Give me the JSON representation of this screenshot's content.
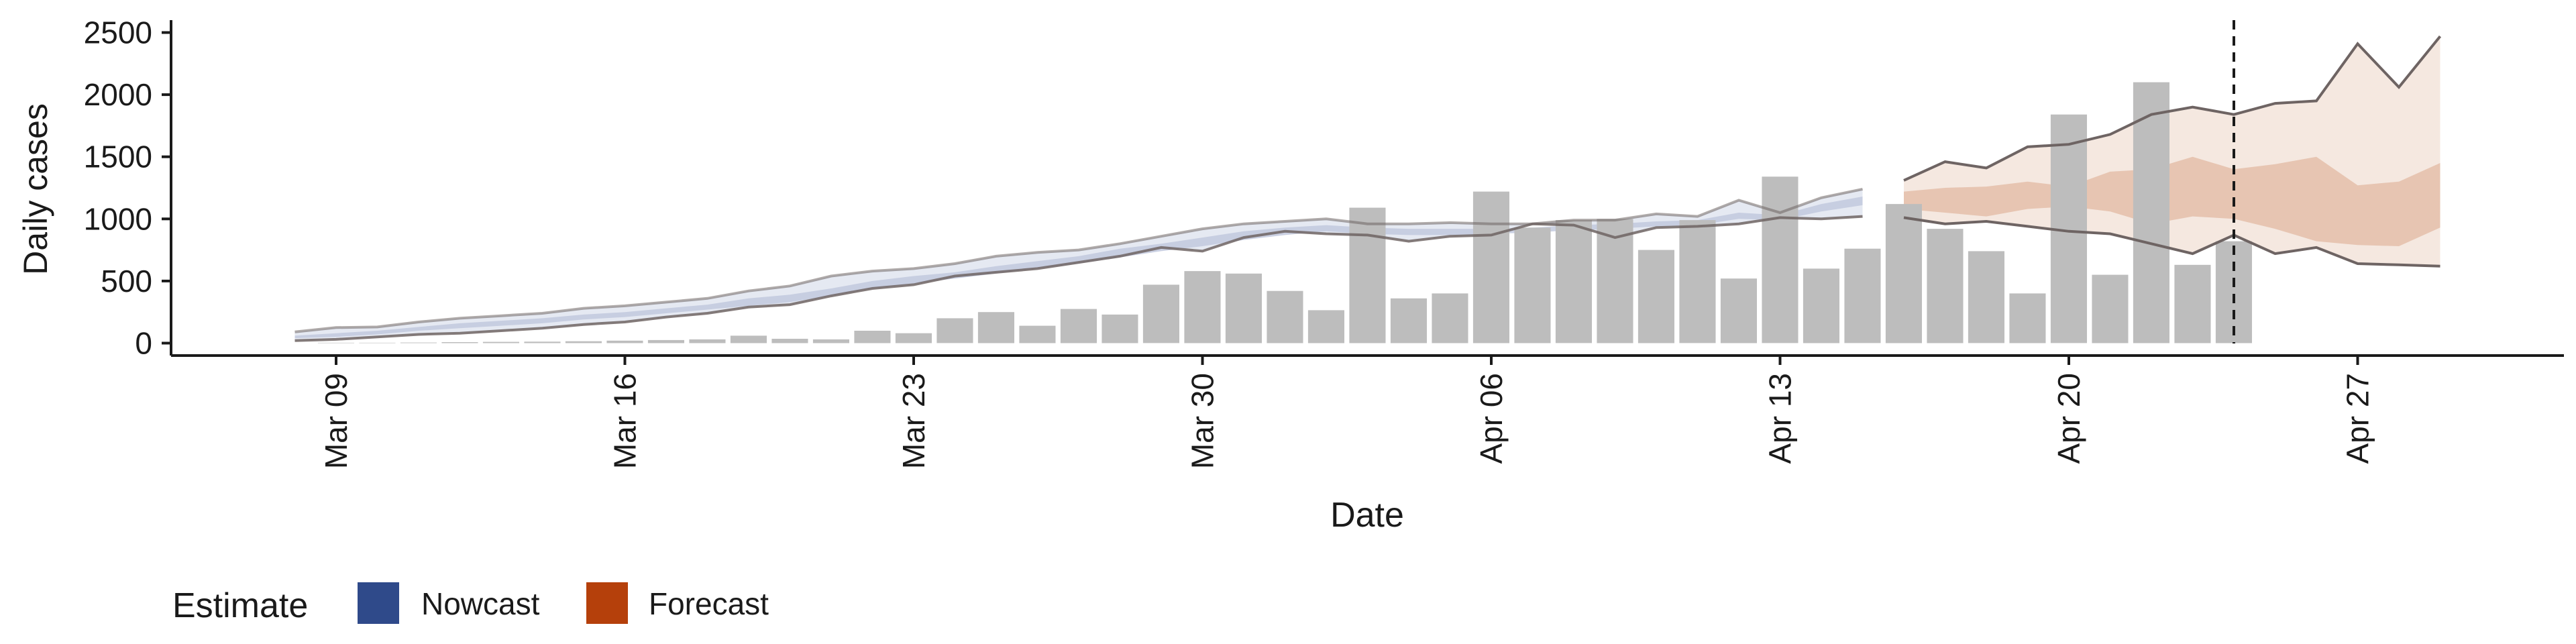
{
  "chart_data": {
    "type": "bar",
    "xlabel": "Date",
    "ylabel": "Daily cases",
    "x_ticks": [
      "Mar 09",
      "Mar 16",
      "Mar 23",
      "Mar 30",
      "Apr 06",
      "Apr 13",
      "Apr 20",
      "Apr 27"
    ],
    "x_tick_dates": [
      "2020-03-09",
      "2020-03-16",
      "2020-03-23",
      "2020-03-30",
      "2020-04-06",
      "2020-04-13",
      "2020-04-20",
      "2020-04-27"
    ],
    "xlim": [
      "2020-03-05",
      "2020-05-02"
    ],
    "y_ticks": [
      0,
      500,
      1000,
      1500,
      2000,
      2500
    ],
    "ylim": [
      -100,
      2600
    ],
    "grid": false,
    "legend": {
      "position": "bottom-left",
      "title": "Estimate",
      "entries": [
        {
          "label": "Nowcast",
          "color": "#2f4a8a"
        },
        {
          "label": "Forecast",
          "color": "#b5400b"
        }
      ]
    },
    "bar_color": "#bdbdbd",
    "band_colors": {
      "nowcast_outer": "#dfe3ef",
      "nowcast_inner": "#c2c9de",
      "forecast_outer": "#f4e6dd",
      "forecast_inner": "#e2b9a3",
      "bound_line": "#6e6463"
    },
    "vline_date": "2020-04-24",
    "bars": {
      "dates": [
        "2020-03-09",
        "2020-03-10",
        "2020-03-11",
        "2020-03-12",
        "2020-03-13",
        "2020-03-14",
        "2020-03-15",
        "2020-03-16",
        "2020-03-17",
        "2020-03-18",
        "2020-03-19",
        "2020-03-20",
        "2020-03-21",
        "2020-03-22",
        "2020-03-23",
        "2020-03-24",
        "2020-03-25",
        "2020-03-26",
        "2020-03-27",
        "2020-03-28",
        "2020-03-29",
        "2020-03-30",
        "2020-03-31",
        "2020-04-01",
        "2020-04-02",
        "2020-04-03",
        "2020-04-04",
        "2020-04-05",
        "2020-04-06",
        "2020-04-07",
        "2020-04-08",
        "2020-04-09",
        "2020-04-10",
        "2020-04-11",
        "2020-04-12",
        "2020-04-13",
        "2020-04-14",
        "2020-04-15",
        "2020-04-16",
        "2020-04-17",
        "2020-04-18",
        "2020-04-19",
        "2020-04-20",
        "2020-04-21",
        "2020-04-22",
        "2020-04-23",
        "2020-04-24"
      ],
      "values": [
        3,
        3,
        5,
        8,
        10,
        12,
        15,
        20,
        25,
        30,
        60,
        35,
        30,
        100,
        80,
        200,
        250,
        140,
        275,
        230,
        470,
        580,
        560,
        420,
        265,
        1090,
        360,
        400,
        1220,
        930,
        990,
        1000,
        750,
        990,
        520,
        1340,
        600,
        760,
        1120,
        920,
        740,
        400,
        1840,
        550,
        2100,
        630,
        820
      ]
    },
    "nowcast": {
      "dates": [
        "2020-03-08",
        "2020-03-09",
        "2020-03-10",
        "2020-03-11",
        "2020-03-12",
        "2020-03-13",
        "2020-03-14",
        "2020-03-15",
        "2020-03-16",
        "2020-03-17",
        "2020-03-18",
        "2020-03-19",
        "2020-03-20",
        "2020-03-21",
        "2020-03-22",
        "2020-03-23",
        "2020-03-24",
        "2020-03-25",
        "2020-03-26",
        "2020-03-27",
        "2020-03-28",
        "2020-03-29",
        "2020-03-30",
        "2020-03-31",
        "2020-04-01",
        "2020-04-02",
        "2020-04-03",
        "2020-04-04",
        "2020-04-05",
        "2020-04-06",
        "2020-04-07",
        "2020-04-08",
        "2020-04-09",
        "2020-04-10",
        "2020-04-11",
        "2020-04-12",
        "2020-04-13",
        "2020-04-14",
        "2020-04-15"
      ],
      "upper90": [
        90,
        125,
        130,
        170,
        200,
        220,
        240,
        280,
        300,
        330,
        360,
        420,
        460,
        540,
        580,
        600,
        640,
        700,
        730,
        750,
        800,
        860,
        920,
        960,
        980,
        1000,
        960,
        960,
        970,
        960,
        960,
        990,
        990,
        1040,
        1020,
        1150,
        1050,
        1170,
        1240
      ],
      "upper50": [
        60,
        80,
        100,
        130,
        160,
        180,
        200,
        230,
        250,
        280,
        310,
        360,
        390,
        440,
        500,
        540,
        570,
        620,
        660,
        700,
        760,
        800,
        850,
        900,
        930,
        950,
        930,
        920,
        920,
        920,
        930,
        950,
        960,
        980,
        990,
        1050,
        1030,
        1120,
        1180
      ],
      "lower50": [
        40,
        50,
        70,
        100,
        120,
        140,
        160,
        190,
        210,
        240,
        270,
        300,
        330,
        380,
        440,
        480,
        520,
        560,
        600,
        640,
        690,
        740,
        780,
        830,
        870,
        900,
        880,
        870,
        870,
        880,
        890,
        910,
        920,
        940,
        950,
        1000,
        990,
        1060,
        1110
      ],
      "lower90": [
        20,
        30,
        50,
        70,
        80,
        100,
        120,
        150,
        170,
        210,
        240,
        290,
        310,
        380,
        440,
        470,
        540,
        570,
        600,
        650,
        700,
        770,
        740,
        850,
        900,
        880,
        870,
        820,
        860,
        870,
        960,
        950,
        850,
        930,
        940,
        960,
        1010,
        1000,
        1020
      ]
    },
    "forecast": {
      "dates": [
        "2020-04-16",
        "2020-04-17",
        "2020-04-18",
        "2020-04-19",
        "2020-04-20",
        "2020-04-21",
        "2020-04-22",
        "2020-04-23",
        "2020-04-24",
        "2020-04-25",
        "2020-04-26",
        "2020-04-27",
        "2020-04-28",
        "2020-04-29"
      ],
      "upper90": [
        1310,
        1460,
        1410,
        1580,
        1600,
        1680,
        1840,
        1900,
        1840,
        1930,
        1950,
        2410,
        2060,
        2470
      ],
      "upper50": [
        1220,
        1250,
        1260,
        1300,
        1260,
        1380,
        1400,
        1500,
        1400,
        1440,
        1500,
        1270,
        1300,
        1450
      ],
      "lower50": [
        1080,
        1050,
        1020,
        1080,
        1100,
        1060,
        960,
        1020,
        1000,
        920,
        820,
        790,
        780,
        930
      ],
      "lower90": [
        1010,
        960,
        980,
        940,
        900,
        880,
        800,
        720,
        870,
        720,
        770,
        640,
        630,
        620
      ]
    }
  }
}
